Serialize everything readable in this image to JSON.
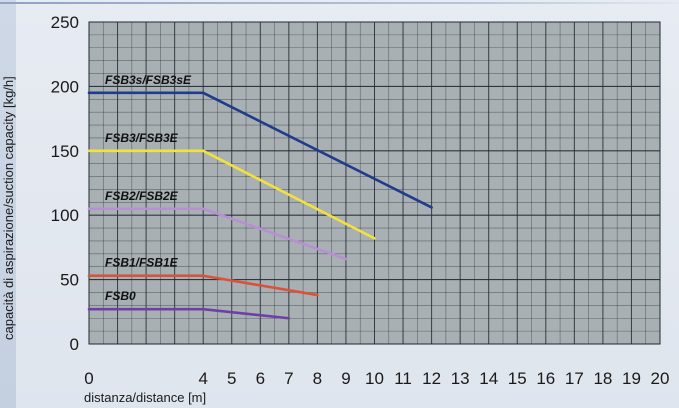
{
  "chart_data": {
    "type": "line",
    "title": "",
    "xlabel": "distanza/distance [m]",
    "ylabel": "capacità di aspirazione/suction capacity [kg/h]",
    "xlim": [
      0,
      20
    ],
    "ylim": [
      0,
      250
    ],
    "x_ticks": [
      0,
      4,
      5,
      6,
      7,
      8,
      9,
      10,
      11,
      12,
      13,
      14,
      15,
      16,
      17,
      18,
      19,
      20
    ],
    "y_ticks": [
      0,
      50,
      100,
      150,
      200,
      250
    ],
    "grid": true,
    "plot_background": "#a9b0b4",
    "grid_color": "#1f2a30",
    "series": [
      {
        "name": "FSB3s/FSB3sE",
        "color": "#1f3c8c",
        "x": [
          0,
          4,
          12
        ],
        "y": [
          195,
          195,
          106
        ]
      },
      {
        "name": "FSB3/FSB3E",
        "color": "#f2e23a",
        "x": [
          0,
          4,
          10
        ],
        "y": [
          150,
          150,
          82
        ]
      },
      {
        "name": "FSB2/FSB2E",
        "color": "#b98fd4",
        "x": [
          0,
          4,
          9
        ],
        "y": [
          105,
          105,
          66
        ]
      },
      {
        "name": "FSB1/FSB1E",
        "color": "#d9533a",
        "x": [
          0,
          4,
          8
        ],
        "y": [
          53,
          53,
          38
        ]
      },
      {
        "name": "FSB0",
        "color": "#6f3fa8",
        "x": [
          0,
          4,
          7
        ],
        "y": [
          27,
          27,
          20
        ]
      }
    ]
  }
}
